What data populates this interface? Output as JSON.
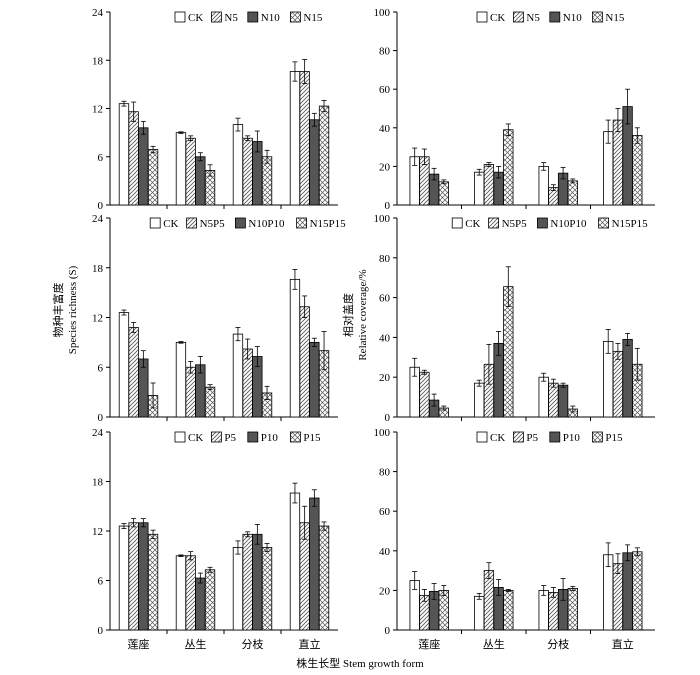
{
  "figure": {
    "xlabel": "株生长型 Stem growth form",
    "ylabel_left_cn": "物种丰富度",
    "ylabel_left_en": "Species richness (S)",
    "ylabel_right_cn": "相对盖度",
    "ylabel_right_en": "Relative coverage/%"
  },
  "colors": {
    "bar_fill": [
      "#ffffff",
      "#ffffff",
      "#555555",
      "#ffffff"
    ],
    "bar_pattern": [
      "none",
      "diag",
      "solid",
      "cross"
    ],
    "axis": "#000000"
  },
  "chart_data": [
    {
      "type": "bar",
      "panel": "top-left",
      "ylim": [
        0,
        24
      ],
      "yticks": [
        0,
        6,
        12,
        18,
        24
      ],
      "categories": [
        "莲座",
        "丛生",
        "分枝",
        "直立"
      ],
      "series": [
        {
          "name": "CK",
          "values": [
            12.6,
            9.0,
            10.0,
            16.6
          ],
          "errors": [
            0.3,
            0.1,
            0.8,
            1.2
          ]
        },
        {
          "name": "N5",
          "values": [
            11.6,
            8.3,
            8.3,
            16.6
          ],
          "errors": [
            1.2,
            0.3,
            0.3,
            1.5
          ]
        },
        {
          "name": "N10",
          "values": [
            9.6,
            6.0,
            7.9,
            10.6
          ],
          "errors": [
            0.8,
            0.5,
            1.3,
            0.8
          ]
        },
        {
          "name": "N15",
          "values": [
            6.9,
            4.3,
            6.0,
            12.3
          ],
          "errors": [
            0.4,
            0.7,
            0.8,
            0.7
          ]
        }
      ]
    },
    {
      "type": "bar",
      "panel": "top-right",
      "ylim": [
        0,
        100
      ],
      "yticks": [
        0,
        20,
        40,
        60,
        80,
        100
      ],
      "categories": [
        "莲座",
        "丛生",
        "分枝",
        "直立"
      ],
      "series": [
        {
          "name": "CK",
          "values": [
            25,
            17,
            20,
            38
          ],
          "errors": [
            4.5,
            1.5,
            2,
            6
          ]
        },
        {
          "name": "N5",
          "values": [
            25,
            21,
            9,
            44
          ],
          "errors": [
            4,
            1,
            1.5,
            6
          ]
        },
        {
          "name": "N10",
          "values": [
            16,
            17,
            16.5,
            51
          ],
          "errors": [
            3,
            3,
            3,
            9
          ]
        },
        {
          "name": "N15",
          "values": [
            12,
            39,
            12.5,
            36
          ],
          "errors": [
            1,
            3,
            1,
            4
          ]
        }
      ]
    },
    {
      "type": "bar",
      "panel": "middle-left",
      "ylim": [
        0,
        24
      ],
      "yticks": [
        0,
        6,
        12,
        18,
        24
      ],
      "categories": [
        "莲座",
        "丛生",
        "分枝",
        "直立"
      ],
      "series": [
        {
          "name": "CK",
          "values": [
            12.6,
            9.0,
            10.0,
            16.6
          ],
          "errors": [
            0.3,
            0.1,
            0.8,
            1.2
          ]
        },
        {
          "name": "N5P5",
          "values": [
            10.8,
            6.0,
            8.2,
            13.3
          ],
          "errors": [
            0.6,
            0.7,
            1.2,
            1.3
          ]
        },
        {
          "name": "N10P10",
          "values": [
            7.0,
            6.3,
            7.3,
            9.0
          ],
          "errors": [
            1.0,
            1.0,
            1.2,
            0.5
          ]
        },
        {
          "name": "N15P15",
          "values": [
            2.6,
            3.6,
            2.9,
            8.0
          ],
          "errors": [
            1.5,
            0.3,
            0.8,
            2.3
          ]
        }
      ]
    },
    {
      "type": "bar",
      "panel": "middle-right",
      "ylim": [
        0,
        100
      ],
      "yticks": [
        0,
        20,
        40,
        60,
        80,
        100
      ],
      "categories": [
        "莲座",
        "丛生",
        "分枝",
        "直立"
      ],
      "series": [
        {
          "name": "CK",
          "values": [
            25,
            17,
            20,
            38
          ],
          "errors": [
            4.5,
            1.5,
            2,
            6
          ]
        },
        {
          "name": "N5P5",
          "values": [
            22.5,
            26.5,
            17,
            33
          ],
          "errors": [
            1,
            10,
            2,
            4
          ]
        },
        {
          "name": "N10P10",
          "values": [
            8.5,
            37,
            16,
            39
          ],
          "errors": [
            3,
            6,
            1,
            3
          ]
        },
        {
          "name": "N15P15",
          "values": [
            4.5,
            65.5,
            4,
            26.5
          ],
          "errors": [
            1,
            10,
            1.5,
            8
          ]
        }
      ]
    },
    {
      "type": "bar",
      "panel": "bottom-left",
      "ylim": [
        0,
        24
      ],
      "yticks": [
        0,
        6,
        12,
        18,
        24
      ],
      "categories": [
        "莲座",
        "丛生",
        "分枝",
        "直立"
      ],
      "series": [
        {
          "name": "CK",
          "values": [
            12.6,
            9.0,
            10.0,
            16.6
          ],
          "errors": [
            0.3,
            0.1,
            0.8,
            1.2
          ]
        },
        {
          "name": "P5",
          "values": [
            13.0,
            9.0,
            11.6,
            13.0
          ],
          "errors": [
            0.5,
            0.5,
            0.3,
            2.0
          ]
        },
        {
          "name": "P10",
          "values": [
            13.0,
            6.3,
            11.6,
            16.0
          ],
          "errors": [
            0.5,
            0.6,
            1.2,
            1.0
          ]
        },
        {
          "name": "P15",
          "values": [
            11.6,
            7.3,
            10.0,
            12.6
          ],
          "errors": [
            0.5,
            0.3,
            0.5,
            0.5
          ]
        }
      ]
    },
    {
      "type": "bar",
      "panel": "bottom-right",
      "ylim": [
        0,
        100
      ],
      "yticks": [
        0,
        20,
        40,
        60,
        80,
        100
      ],
      "categories": [
        "莲座",
        "丛生",
        "分枝",
        "直立"
      ],
      "series": [
        {
          "name": "CK",
          "values": [
            25,
            17,
            20,
            38
          ],
          "errors": [
            4.5,
            1.5,
            2.5,
            6
          ]
        },
        {
          "name": "P5",
          "values": [
            17.5,
            30,
            19,
            33.5
          ],
          "errors": [
            3,
            4,
            2.5,
            5
          ]
        },
        {
          "name": "P10",
          "values": [
            19.5,
            21.5,
            20.5,
            39
          ],
          "errors": [
            4,
            4,
            5.5,
            4
          ]
        },
        {
          "name": "P15",
          "values": [
            20,
            20,
            21,
            39.5
          ],
          "errors": [
            2.5,
            0.5,
            1,
            2
          ]
        }
      ]
    }
  ]
}
